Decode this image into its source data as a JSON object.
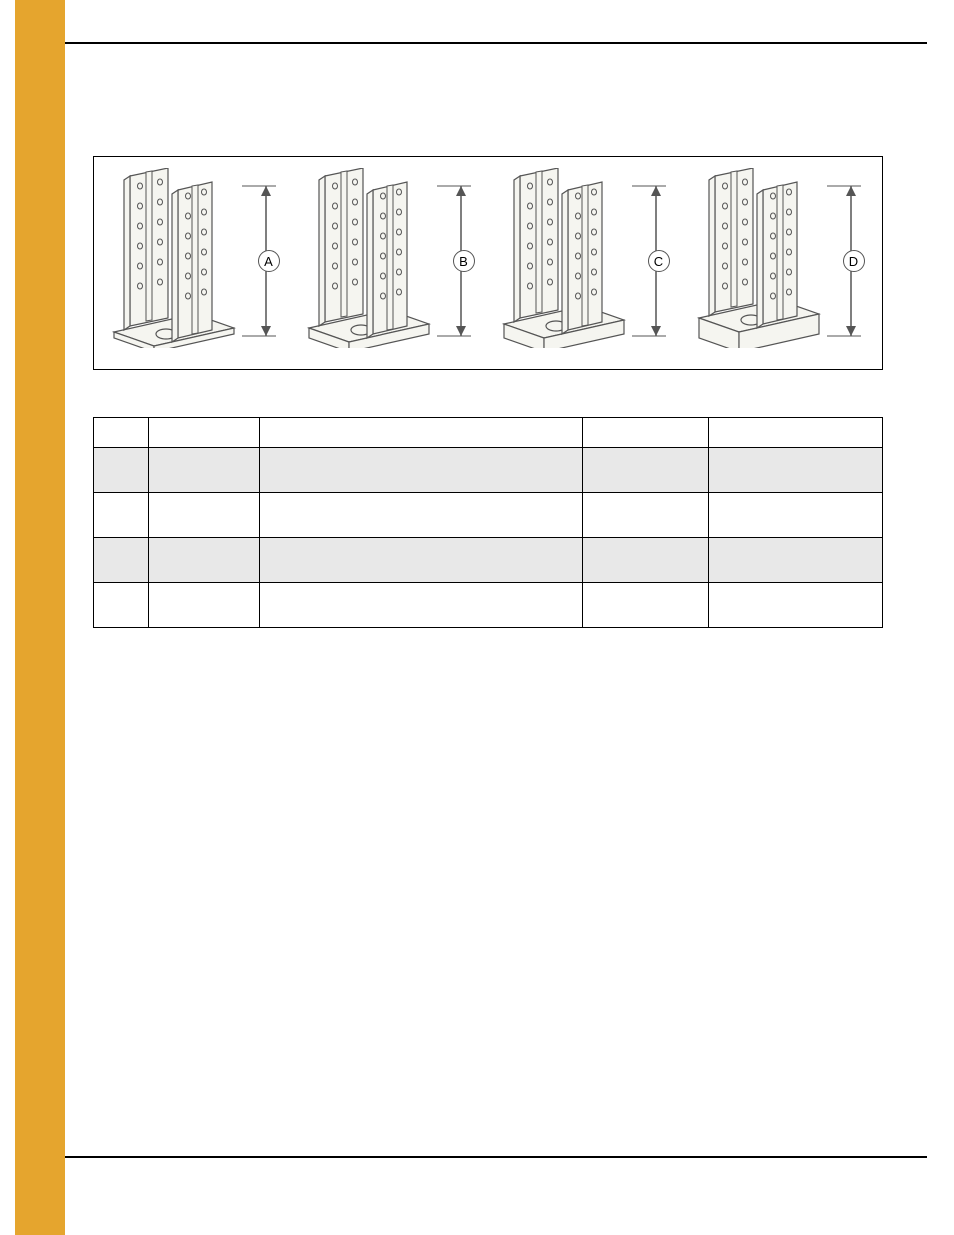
{
  "colors": {
    "sidebar": "#e5a52e",
    "rule": "#000000",
    "figure_border": "#000000",
    "table_border": "#000000",
    "row_shade": "#e8e8e8",
    "bracket_fill": "#f5f5f0",
    "bracket_stroke": "#555555",
    "dim_stroke": "#555555"
  },
  "figure": {
    "brackets": [
      {
        "id": "A",
        "base_thickness": 6
      },
      {
        "id": "B",
        "base_thickness": 10
      },
      {
        "id": "C",
        "base_thickness": 14
      },
      {
        "id": "D",
        "base_thickness": 20
      }
    ]
  },
  "table": {
    "headers": [
      "",
      "",
      "",
      "",
      ""
    ],
    "col_widths_pct": [
      7,
      14,
      41,
      16,
      22
    ],
    "rows": [
      {
        "shaded": true,
        "cells": [
          "",
          "",
          "",
          "",
          ""
        ]
      },
      {
        "shaded": false,
        "cells": [
          "",
          "",
          "",
          "",
          ""
        ]
      },
      {
        "shaded": true,
        "cells": [
          "",
          "",
          "",
          "",
          ""
        ]
      },
      {
        "shaded": false,
        "cells": [
          "",
          "",
          "",
          "",
          ""
        ]
      }
    ]
  }
}
